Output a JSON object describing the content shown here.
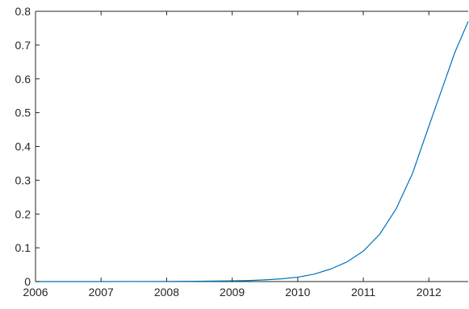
{
  "chart_data": {
    "type": "line",
    "title": "",
    "xlabel": "",
    "ylabel": "",
    "xlim": [
      2006,
      2012.6
    ],
    "ylim": [
      0,
      0.8
    ],
    "x_ticks": [
      2006,
      2007,
      2008,
      2009,
      2010,
      2011,
      2012
    ],
    "x_tick_labels": [
      "2006",
      "2007",
      "2008",
      "2009",
      "2010",
      "2011",
      "2012"
    ],
    "y_ticks": [
      0,
      0.1,
      0.2,
      0.3,
      0.4,
      0.5,
      0.6,
      0.7,
      0.8
    ],
    "y_tick_labels": [
      "0",
      "0.1",
      "0.2",
      "0.3",
      "0.4",
      "0.5",
      "0.6",
      "0.7",
      "0.8"
    ],
    "grid": false,
    "colors": {
      "line": "#0072bd",
      "axes": "#262626"
    },
    "series": [
      {
        "color": "#0072bd",
        "x": [
          2006.0,
          2007.0,
          2008.0,
          2008.5,
          2009.0,
          2009.25,
          2009.5,
          2009.75,
          2010.0,
          2010.25,
          2010.5,
          2010.75,
          2011.0,
          2011.25,
          2011.5,
          2011.75,
          2012.0,
          2012.2,
          2012.4,
          2012.6
        ],
        "y": [
          0.0,
          0.0,
          0.0005,
          0.001,
          0.002,
          0.003,
          0.005,
          0.008,
          0.013,
          0.022,
          0.037,
          0.058,
          0.09,
          0.14,
          0.215,
          0.32,
          0.46,
          0.57,
          0.68,
          0.77
        ]
      }
    ]
  }
}
